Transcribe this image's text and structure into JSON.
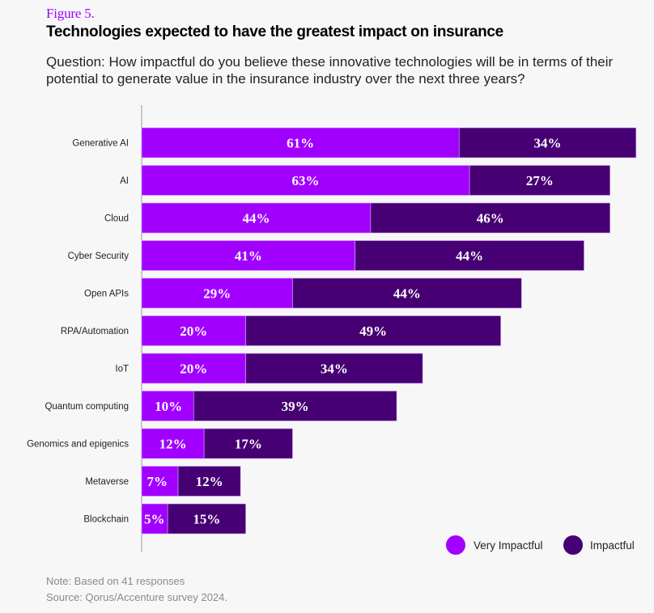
{
  "figure_label": "Figure 5.",
  "title": "Technologies expected to have the greatest impact on insurance",
  "question": "Question: How impactful do you believe these innovative technologies will be in terms of their potential to generate value in the insurance industry over the next three years?",
  "note": "Note: Based on 41 responses",
  "source": "Source: Qorus/Accenture survey 2024.",
  "colors": {
    "very_impactful": "#a100ff",
    "impactful": "#460073",
    "axis": "#9a9a9a"
  },
  "chart_data": {
    "type": "bar",
    "orientation": "horizontal",
    "stacked": true,
    "title": "Technologies expected to have the greatest impact on insurance",
    "xlabel": "",
    "ylabel": "",
    "xlim": [
      0,
      100
    ],
    "grid": false,
    "legend_position": "bottom-right",
    "value_suffix": "%",
    "categories": [
      "Generative AI",
      "AI",
      "Cloud",
      "Cyber Security",
      "Open APIs",
      "RPA/Automation",
      "IoT",
      "Quantum computing",
      "Genomics and epigenics",
      "Metaverse",
      "Blockchain"
    ],
    "series": [
      {
        "name": "Very Impactful",
        "values": [
          61,
          63,
          44,
          41,
          29,
          20,
          20,
          10,
          12,
          7,
          5
        ]
      },
      {
        "name": "Impactful",
        "values": [
          34,
          27,
          46,
          44,
          44,
          49,
          34,
          39,
          17,
          12,
          15
        ]
      }
    ]
  }
}
